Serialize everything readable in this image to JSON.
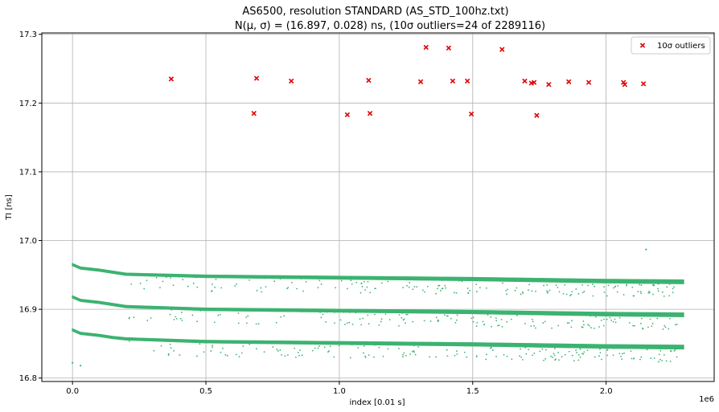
{
  "chart_data": {
    "type": "scatter",
    "title": "AS6500, resolution STANDARD (AS_STD_100hz.txt)",
    "subtitle": "N(μ, σ) = (16.897, 0.028) ns, (10σ outliers=24 of 2289116)",
    "xlabel": "index [0.01 s]",
    "ylabel": "TI [ns]",
    "x_offset_label": "1e6",
    "xlim": [
      -0.115,
      2.405
    ],
    "ylim": [
      16.795,
      17.302
    ],
    "xticks": [
      0.0,
      0.5,
      1.0,
      1.5,
      2.0
    ],
    "xtick_labels": [
      "0.0",
      "0.5",
      "1.0",
      "1.5",
      "2.0"
    ],
    "yticks": [
      16.8,
      16.9,
      17.0,
      17.1,
      17.2,
      17.3
    ],
    "ytick_labels": [
      "16.8",
      "16.9",
      "17.0",
      "17.1",
      "17.2",
      "17.3"
    ],
    "grid": true,
    "legend_position": "top-right",
    "colors": {
      "measurements": "#3cb371",
      "outliers": "#e00000",
      "grid": "#b0b0b0"
    },
    "series": [
      {
        "marker": "dot",
        "bands": [
          {
            "x": [
              0.0,
              0.03,
              0.1,
              0.15,
              0.2,
              0.5,
              1.0,
              1.5,
              2.0,
              2.29
            ],
            "y": [
              16.965,
              16.96,
              16.957,
              16.954,
              16.951,
              16.948,
              16.946,
              16.944,
              16.941,
              16.94
            ]
          },
          {
            "x": [
              0.0,
              0.03,
              0.1,
              0.15,
              0.2,
              0.5,
              1.0,
              1.5,
              2.0,
              2.29
            ],
            "y": [
              16.918,
              16.913,
              16.91,
              16.907,
              16.904,
              16.9,
              16.898,
              16.896,
              16.893,
              16.892
            ]
          },
          {
            "x": [
              0.0,
              0.03,
              0.1,
              0.15,
              0.2,
              0.5,
              1.0,
              1.5,
              2.0,
              2.29
            ],
            "y": [
              16.87,
              16.865,
              16.862,
              16.859,
              16.857,
              16.853,
              16.851,
              16.849,
              16.846,
              16.845
            ]
          }
        ],
        "isolated_points": {
          "x": [
            0.0,
            0.03,
            2.15
          ],
          "y": [
            16.822,
            16.818,
            16.987
          ]
        }
      },
      {
        "name": "10σ outliers",
        "marker": "x",
        "x": [
          0.37,
          0.68,
          0.69,
          0.82,
          1.03,
          1.11,
          1.115,
          1.305,
          1.325,
          1.41,
          1.425,
          1.48,
          1.495,
          1.61,
          1.695,
          1.72,
          1.73,
          1.74,
          1.785,
          1.86,
          1.935,
          2.065,
          2.07,
          2.14
        ],
        "y": [
          17.235,
          17.185,
          17.236,
          17.232,
          17.183,
          17.233,
          17.185,
          17.231,
          17.281,
          17.28,
          17.232,
          17.232,
          17.184,
          17.278,
          17.232,
          17.229,
          17.23,
          17.182,
          17.227,
          17.231,
          17.23,
          17.23,
          17.227,
          17.228
        ]
      }
    ]
  }
}
